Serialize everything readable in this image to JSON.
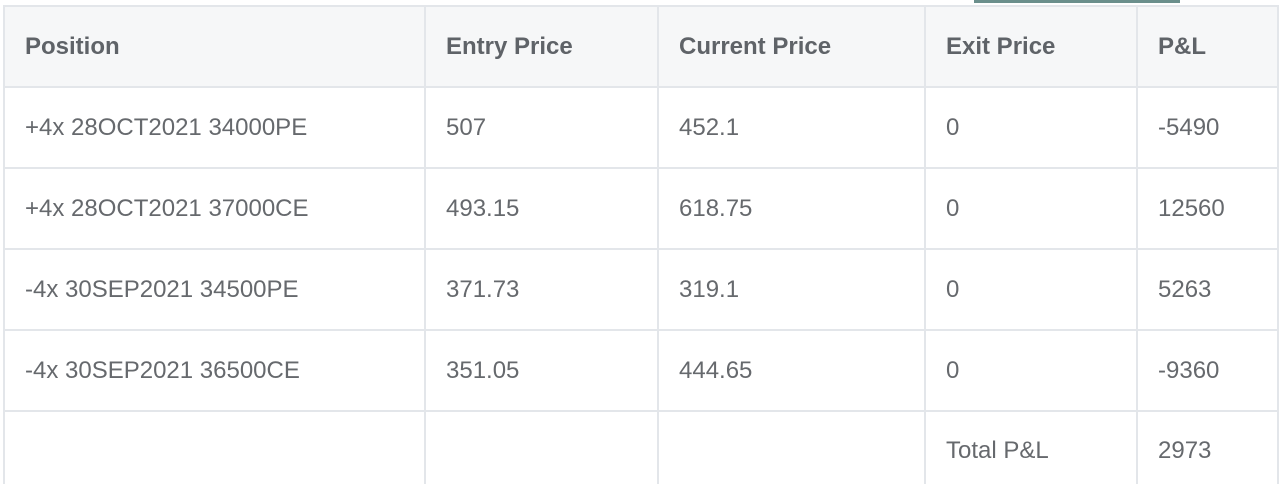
{
  "table": {
    "headers": [
      "Position",
      "Entry Price",
      "Current Price",
      "Exit Price",
      "P&L"
    ],
    "rows": [
      [
        "+4x 28OCT2021 34000PE",
        "507",
        "452.1",
        "0",
        "-5490"
      ],
      [
        "+4x 28OCT2021 37000CE",
        "493.15",
        "618.75",
        "0",
        "12560"
      ],
      [
        "-4x 30SEP2021 34500PE",
        "371.73",
        "319.1",
        "0",
        "5263"
      ],
      [
        "-4x 30SEP2021 36500CE",
        "351.05",
        "444.65",
        "0",
        "-9360"
      ]
    ],
    "total": {
      "label": "Total P&L",
      "value": "2973"
    }
  },
  "colors": {
    "header_bg": "#f6f7f8",
    "border": "#e3e6ea",
    "text": "#66696d",
    "header_text": "#5f6368",
    "tab_indicator": "#6b8f8c"
  }
}
